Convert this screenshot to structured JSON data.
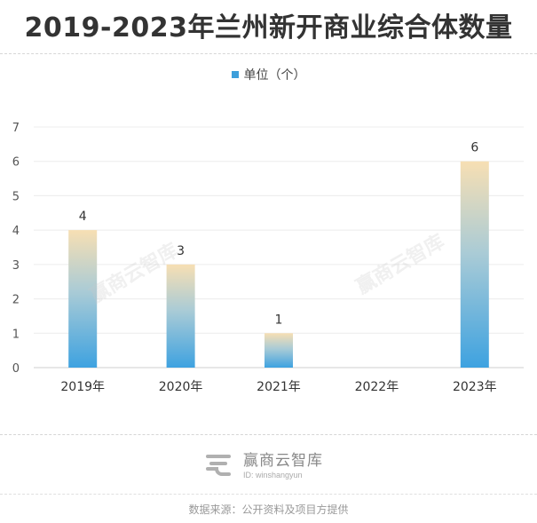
{
  "title": "2019-2023年兰州新开商业综合体数量",
  "legend": {
    "label": "单位（个）",
    "color": "#3d9fdb"
  },
  "chart_data": {
    "type": "bar",
    "categories": [
      "2019年",
      "2020年",
      "2021年",
      "2022年",
      "2023年"
    ],
    "values": [
      4,
      3,
      1,
      0,
      6
    ],
    "data_labels": [
      "4",
      "3",
      "1",
      "",
      "6"
    ],
    "series": [
      {
        "name": "单位（个）",
        "values": [
          4,
          3,
          1,
          0,
          6
        ]
      }
    ],
    "yticks": [
      "0",
      "1",
      "2",
      "3",
      "4",
      "5",
      "6",
      "7"
    ],
    "ylim": [
      0,
      7
    ],
    "grid": true,
    "legend_position": "top-center",
    "bar_gradient": {
      "top": "#f7dfb3",
      "bottom": "#3ea2e0"
    }
  },
  "watermark": "赢商云智库",
  "brand": {
    "name": "赢商云智库",
    "id": "ID: winshangyun"
  },
  "source": "数据来源：公开资料及项目方提供"
}
